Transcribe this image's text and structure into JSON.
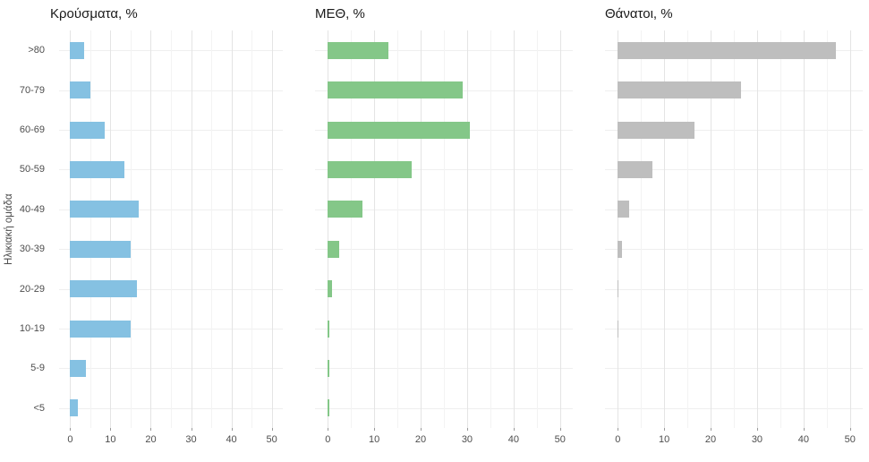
{
  "figure": {
    "y_axis_title": "Ηλικιακή ομάδα"
  },
  "chart_data": {
    "type": "bar",
    "orientation": "horizontal",
    "grid": true,
    "categories": [
      ">80",
      "70-79",
      "60-69",
      "50-59",
      "40-49",
      "30-39",
      "20-29",
      "10-19",
      "5-9",
      "<5"
    ],
    "y_axis_title": "Ηλικιακή ομάδα",
    "x_ticks": [
      0,
      10,
      20,
      30,
      40,
      50
    ],
    "xlim": [
      0,
      50
    ],
    "series": [
      {
        "name": "Κρούσματα, %",
        "color": "#85C1E2",
        "values": [
          3.5,
          5,
          8.5,
          13.5,
          17,
          15,
          16.5,
          15,
          4,
          2
        ]
      },
      {
        "name": "ΜΕΘ, %",
        "color": "#84C788",
        "values": [
          13,
          29,
          30.5,
          18,
          7.5,
          2.5,
          1,
          0.3,
          0.25,
          0.4
        ]
      },
      {
        "name": "Θάνατοι, %",
        "color": "#BEBEBE",
        "values": [
          47,
          26.5,
          16.5,
          7.5,
          2.5,
          1,
          0.15,
          0.1,
          0.05,
          0.05
        ]
      }
    ]
  }
}
